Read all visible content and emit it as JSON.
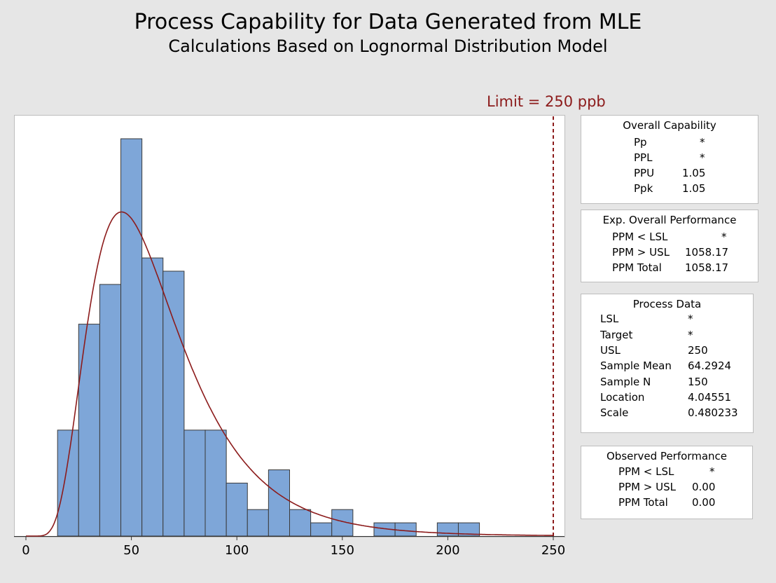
{
  "title": "Process Capability for Data Generated from MLE",
  "subtitle": "Calculations Based on Lognormal Distribution Model",
  "limit_label": "Limit = 250 ppb",
  "colors": {
    "bar": "#7ea6d8",
    "bar_edge": "#3a3a3a",
    "curve": "#8c1b1b",
    "limit": "#8c1b1b"
  },
  "chart_data": {
    "type": "bar",
    "title": "Process Capability for Data Generated from MLE",
    "subtitle": "Calculations Based on Lognormal Distribution Model",
    "xlabel": "",
    "ylabel": "",
    "xlim": [
      0,
      250
    ],
    "xticks": [
      "0",
      "50",
      "100",
      "150",
      "200",
      "250"
    ],
    "bin_width": 10,
    "bins": [
      {
        "x0": 15,
        "x1": 25,
        "count": 8
      },
      {
        "x0": 25,
        "x1": 35,
        "count": 16
      },
      {
        "x0": 35,
        "x1": 45,
        "count": 19
      },
      {
        "x0": 45,
        "x1": 55,
        "count": 30
      },
      {
        "x0": 55,
        "x1": 65,
        "count": 21
      },
      {
        "x0": 65,
        "x1": 75,
        "count": 20
      },
      {
        "x0": 75,
        "x1": 85,
        "count": 8
      },
      {
        "x0": 85,
        "x1": 95,
        "count": 8
      },
      {
        "x0": 95,
        "x1": 105,
        "count": 4
      },
      {
        "x0": 105,
        "x1": 115,
        "count": 2
      },
      {
        "x0": 115,
        "x1": 125,
        "count": 5
      },
      {
        "x0": 125,
        "x1": 135,
        "count": 2
      },
      {
        "x0": 135,
        "x1": 145,
        "count": 1
      },
      {
        "x0": 145,
        "x1": 155,
        "count": 2
      },
      {
        "x0": 165,
        "x1": 175,
        "count": 1
      },
      {
        "x0": 175,
        "x1": 185,
        "count": 1
      },
      {
        "x0": 195,
        "x1": 205,
        "count": 1
      },
      {
        "x0": 205,
        "x1": 215,
        "count": 1
      }
    ],
    "fit": {
      "distribution": "lognormal",
      "location": 4.04551,
      "scale": 0.480233,
      "n": 150
    },
    "usl": 250,
    "grid": false,
    "legend": "none"
  },
  "overall_capability": {
    "header": "Overall Capability",
    "rows": [
      {
        "label": "Pp",
        "value": "*"
      },
      {
        "label": "PPL",
        "value": "*"
      },
      {
        "label": "PPU",
        "value": "1.05"
      },
      {
        "label": "Ppk",
        "value": "1.05"
      }
    ]
  },
  "exp_performance": {
    "header": "Exp. Overall Performance",
    "rows": [
      {
        "label": "PPM < LSL",
        "value": "*"
      },
      {
        "label": "PPM > USL",
        "value": "1058.17"
      },
      {
        "label": "PPM Total",
        "value": "1058.17"
      }
    ]
  },
  "process_data": {
    "header": "Process Data",
    "rows": [
      {
        "label": "LSL",
        "value": "*"
      },
      {
        "label": "Target",
        "value": "*"
      },
      {
        "label": "USL",
        "value": "250"
      },
      {
        "label": "Sample Mean",
        "value": "64.2924"
      },
      {
        "label": "Sample N",
        "value": "150"
      },
      {
        "label": "Location",
        "value": "4.04551"
      },
      {
        "label": "Scale",
        "value": "0.480233"
      }
    ]
  },
  "observed_performance": {
    "header": "Observed Performance",
    "rows": [
      {
        "label": "PPM < LSL",
        "value": "*"
      },
      {
        "label": "PPM > USL",
        "value": "0.00"
      },
      {
        "label": "PPM Total",
        "value": "0.00"
      }
    ]
  }
}
